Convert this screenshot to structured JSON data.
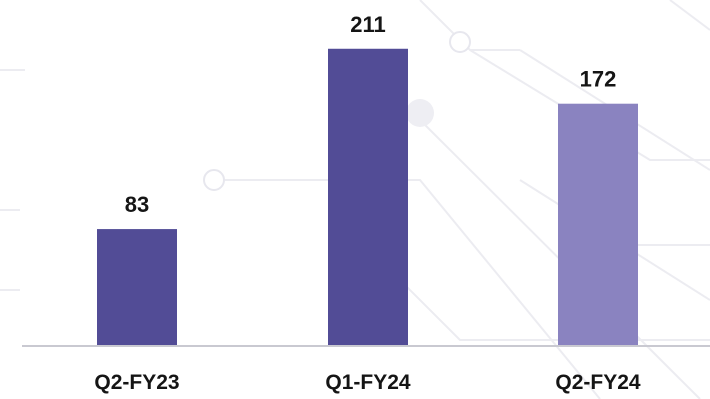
{
  "chart_data": {
    "type": "bar",
    "title": "",
    "xlabel": "",
    "ylabel": "",
    "categories": [
      "Q2-FY23",
      "Q1-FY24",
      "Q2-FY24"
    ],
    "values": [
      83,
      211,
      172
    ],
    "ylim": [
      0,
      230
    ],
    "grid": false,
    "data_labels": [
      "83",
      "211",
      "172"
    ],
    "bar_colors": [
      "#524c96",
      "#524c96",
      "#8a83c0"
    ]
  },
  "colors": {
    "axis": "#c9c9d1",
    "text": "#151515",
    "decor": "#ececf1"
  }
}
